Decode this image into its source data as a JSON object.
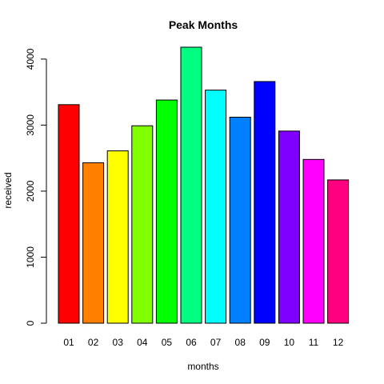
{
  "chart_data": {
    "type": "bar",
    "title": "Peak Months",
    "xlabel": "months",
    "ylabel": "received",
    "categories": [
      "01",
      "02",
      "03",
      "04",
      "05",
      "06",
      "07",
      "08",
      "09",
      "10",
      "11",
      "12"
    ],
    "values": [
      3310,
      2430,
      2610,
      2990,
      3380,
      4180,
      3530,
      3120,
      3660,
      2910,
      2480,
      2170
    ],
    "colors": [
      "#FF0000",
      "#FF8000",
      "#FFFF00",
      "#80FF00",
      "#00FF00",
      "#00FF80",
      "#00FFFF",
      "#0080FF",
      "#0000FF",
      "#8000FF",
      "#FF00FF",
      "#FF0080"
    ],
    "ylim": [
      0,
      4180
    ],
    "yticks": [
      0,
      1000,
      2000,
      3000,
      4000
    ],
    "grid": false,
    "legend": "none"
  }
}
